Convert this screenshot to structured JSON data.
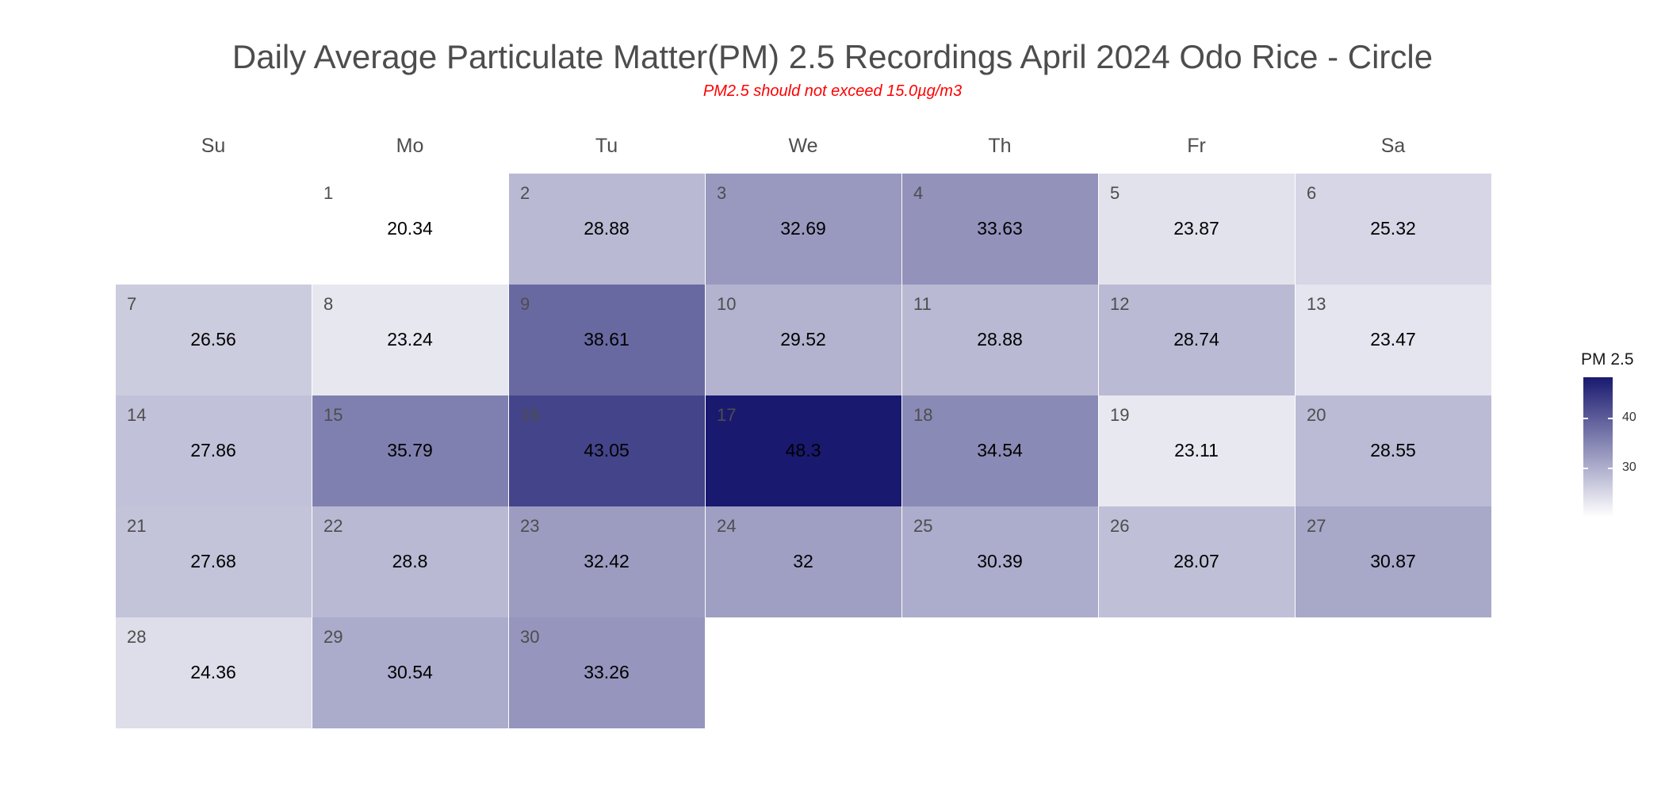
{
  "chart_data": {
    "type": "heatmap",
    "title": "Daily Average Particulate Matter(PM) 2.5 Recordings April 2024 Odo Rice - Circle",
    "subtitle": "PM2.5 should not exceed 15.0µg/m3",
    "weekdays": [
      "Su",
      "Mo",
      "Tu",
      "We",
      "Th",
      "Fr",
      "Sa"
    ],
    "first_weekday_index": 1,
    "days": [
      1,
      2,
      3,
      4,
      5,
      6,
      7,
      8,
      9,
      10,
      11,
      12,
      13,
      14,
      15,
      16,
      17,
      18,
      19,
      20,
      21,
      22,
      23,
      24,
      25,
      26,
      27,
      28,
      29,
      30
    ],
    "values": [
      "20.34",
      "28.88",
      "32.69",
      "33.63",
      "23.87",
      "25.32",
      "26.56",
      "23.24",
      "38.61",
      "29.52",
      "28.88",
      "28.74",
      "23.47",
      "27.86",
      "35.79",
      "43.05",
      "48.3",
      "34.54",
      "23.11",
      "28.55",
      "27.68",
      "28.8",
      "32.42",
      "32",
      "30.39",
      "28.07",
      "30.87",
      "24.36",
      "30.54",
      "33.26"
    ],
    "legend": {
      "title": "PM 2.5",
      "ticks": [
        "40",
        "30"
      ],
      "range": [
        20.34,
        48.3
      ]
    },
    "colors": {
      "low": "#ffffff",
      "high": "#191970"
    }
  }
}
